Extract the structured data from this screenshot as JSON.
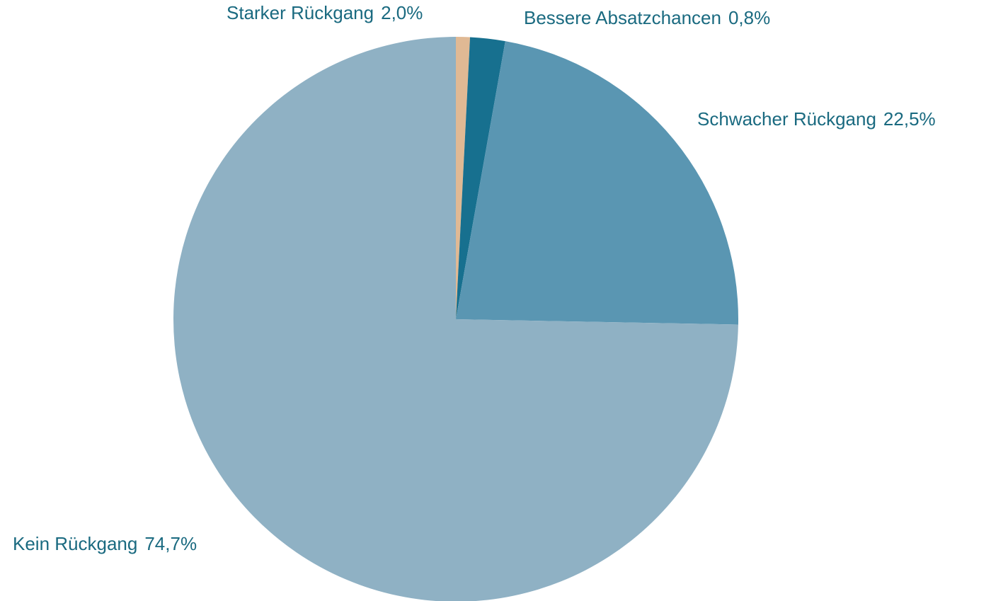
{
  "chart_data": {
    "type": "pie",
    "categories": [
      "Bessere Absatzchancen",
      "Starker Rückgang",
      "Schwacher Rückgang",
      "Kein Rückgang"
    ],
    "values": [
      0.8,
      2.0,
      22.5,
      74.7
    ],
    "value_labels": [
      "0,8%",
      "2,0%",
      "22,5%",
      "74,7%"
    ],
    "colors": [
      "#e0b994",
      "#17708f",
      "#5a96b2",
      "#8fb1c4"
    ]
  }
}
